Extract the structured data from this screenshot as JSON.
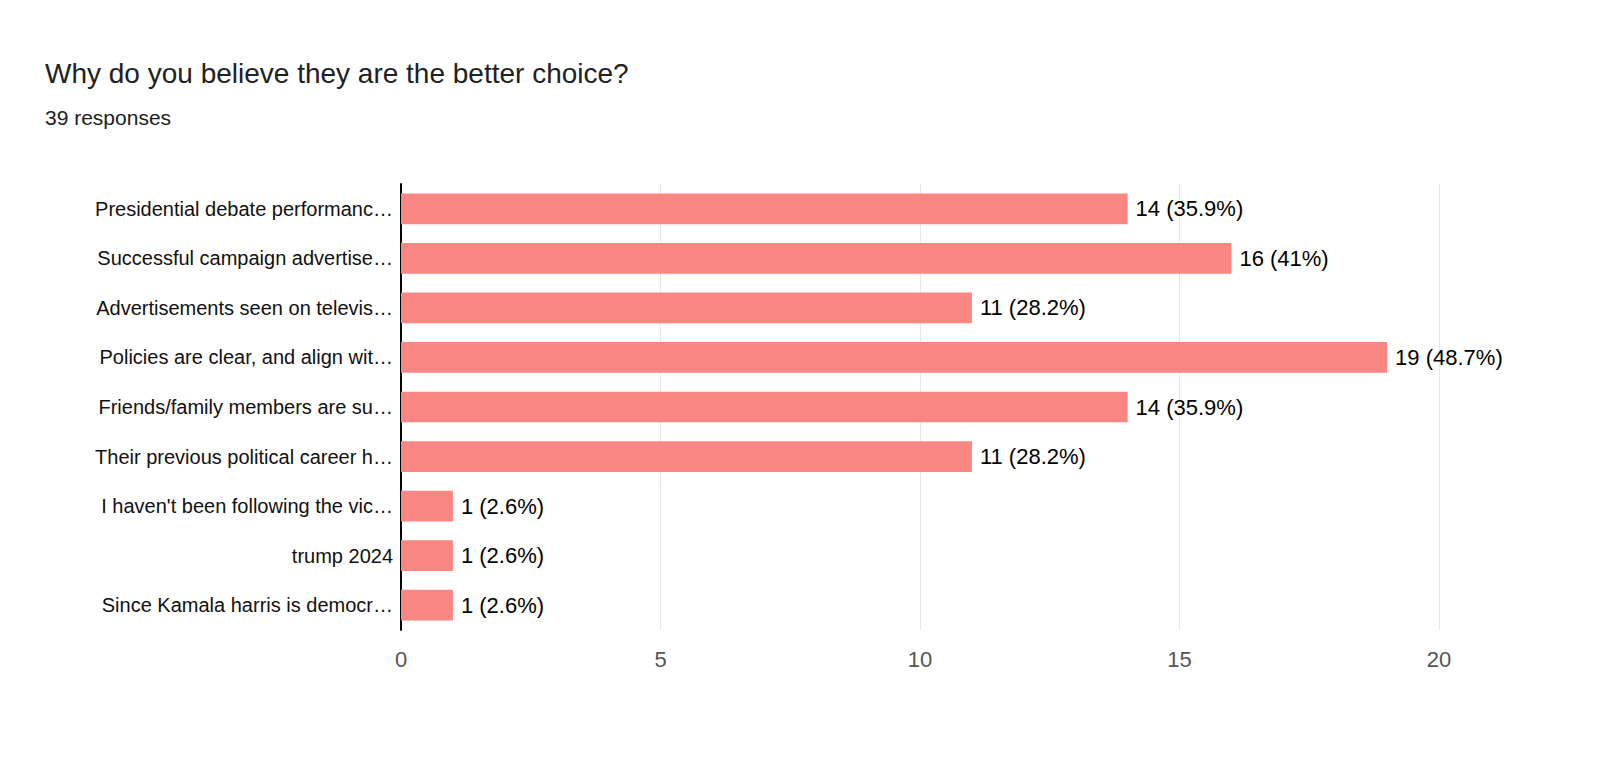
{
  "chart_data": {
    "type": "bar",
    "orientation": "horizontal",
    "title": "Why do you believe they are the better choice?",
    "subtitle": "39 responses",
    "categories": [
      "Presidential debate performanc…",
      "Successful campaign advertise…",
      "Advertisements seen on televis…",
      "Policies are clear, and align wit…",
      "Friends/family members are su…",
      "Their previous political career h…",
      "I haven't been following the vic…",
      "trump 2024",
      "Since Kamala harris is democr…"
    ],
    "values": [
      14,
      16,
      11,
      19,
      14,
      11,
      1,
      1,
      1
    ],
    "value_labels": [
      "14 (35.9%)",
      "16 (41%)",
      "11 (28.2%)",
      "19 (48.7%)",
      "14 (35.9%)",
      "11 (28.2%)",
      "1 (2.6%)",
      "1 (2.6%)",
      "1 (2.6%)"
    ],
    "color": "#f88683",
    "xlim": [
      0,
      20
    ],
    "xticks": [
      0,
      5,
      10,
      15,
      20
    ],
    "grid": true,
    "data_labels": true
  }
}
